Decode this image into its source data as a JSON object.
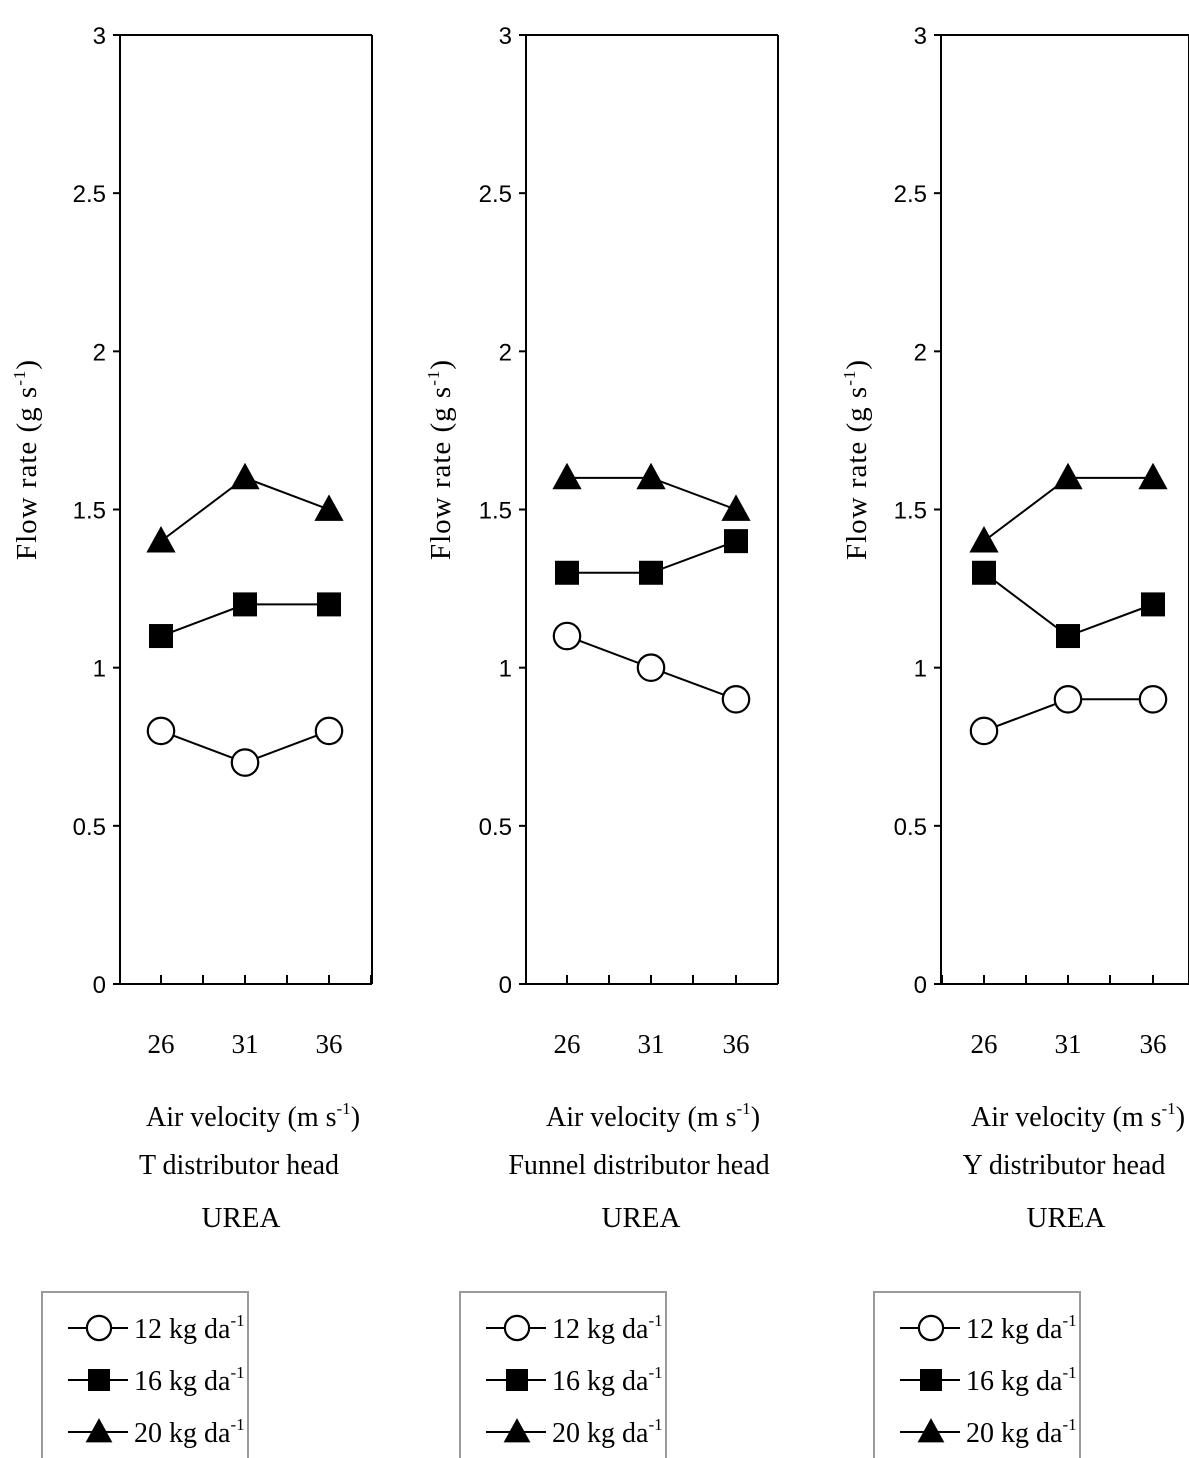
{
  "chart_data": [
    {
      "type": "line",
      "ylabel": "Flow rate (g s-1)",
      "ylabel_main": "Flow rate (g s",
      "ylabel_sup": "-1",
      "ylabel_tail": ")",
      "xlabel": "Air velocity (m s-1)",
      "xlabel_main": "Air velocity (m s",
      "xlabel_sup": "-1",
      "xlabel_tail": ")",
      "subtitle": "T distributor head",
      "material": "UREA",
      "ylim": [
        0,
        3
      ],
      "yticks": [
        "0",
        "0.5",
        "1",
        "1.5",
        "2",
        "2.5",
        "3"
      ],
      "categories": [
        "26",
        "31",
        "36"
      ],
      "series": [
        {
          "name": "12 kg da-1",
          "label_main": "12 kg da",
          "label_sup": "-1",
          "marker": "circle-open",
          "values": [
            0.8,
            0.7,
            0.8
          ]
        },
        {
          "name": "16 kg da-1",
          "label_main": "16 kg da",
          "label_sup": "-1",
          "marker": "square-filled",
          "values": [
            1.1,
            1.2,
            1.2
          ]
        },
        {
          "name": "20 kg da-1",
          "label_main": "20 kg da",
          "label_sup": "-1",
          "marker": "triangle-filled",
          "values": [
            1.4,
            1.6,
            1.5
          ]
        }
      ]
    },
    {
      "type": "line",
      "ylabel": "Flow rate (g s-1)",
      "ylabel_main": "Flow rate (g s",
      "ylabel_sup": "-1",
      "ylabel_tail": ")",
      "xlabel": "Air velocity (m s-1)",
      "xlabel_main": "Air velocity (m s",
      "xlabel_sup": "-1",
      "xlabel_tail": ")",
      "subtitle": "Funnel distributor head",
      "material": "UREA",
      "ylim": [
        0,
        3
      ],
      "yticks": [
        "0",
        "0.5",
        "1",
        "1.5",
        "2",
        "2.5",
        "3"
      ],
      "categories": [
        "26",
        "31",
        "36"
      ],
      "series": [
        {
          "name": "12 kg da-1",
          "label_main": "12 kg da",
          "label_sup": "-1",
          "marker": "circle-open",
          "values": [
            1.1,
            1.0,
            0.9
          ]
        },
        {
          "name": "16 kg da-1",
          "label_main": "16 kg da",
          "label_sup": "-1",
          "marker": "square-filled",
          "values": [
            1.3,
            1.3,
            1.4
          ]
        },
        {
          "name": "20 kg da-1",
          "label_main": "20 kg da",
          "label_sup": "-1",
          "marker": "triangle-filled",
          "values": [
            1.6,
            1.6,
            1.5
          ]
        }
      ]
    },
    {
      "type": "line",
      "ylabel": "Flow rate (g s-1)",
      "ylabel_main": "Flow rate (g s",
      "ylabel_sup": "-1",
      "ylabel_tail": ")",
      "xlabel": "Air velocity (m s-1)",
      "xlabel_main": "Air velocity (m s",
      "xlabel_sup": "-1",
      "xlabel_tail": ")",
      "subtitle": "Y distributor head",
      "material": "UREA",
      "ylim": [
        0,
        3
      ],
      "yticks": [
        "0",
        "0.5",
        "1",
        "1.5",
        "2",
        "2.5",
        "3"
      ],
      "categories": [
        "26",
        "31",
        "36"
      ],
      "series": [
        {
          "name": "12 kg da-1",
          "label_main": "12 kg da",
          "label_sup": "-1",
          "marker": "circle-open",
          "values": [
            0.8,
            0.9,
            0.9
          ]
        },
        {
          "name": "16 kg da-1",
          "label_main": "16 kg da",
          "label_sup": "-1",
          "marker": "square-filled",
          "values": [
            1.3,
            1.1,
            1.2
          ]
        },
        {
          "name": "20 kg da-1",
          "label_main": "20 kg da",
          "label_sup": "-1",
          "marker": "triangle-filled",
          "values": [
            1.4,
            1.6,
            1.6
          ]
        }
      ]
    }
  ]
}
